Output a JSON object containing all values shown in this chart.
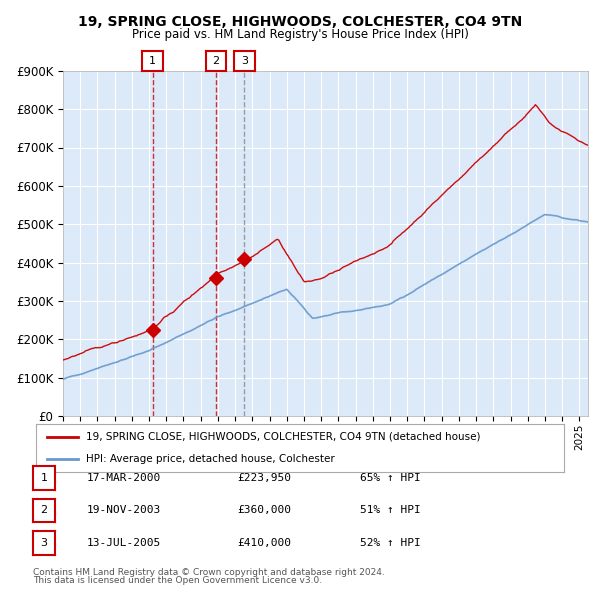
{
  "title": "19, SPRING CLOSE, HIGHWOODS, COLCHESTER, CO4 9TN",
  "subtitle": "Price paid vs. HM Land Registry's House Price Index (HPI)",
  "legend_line1": "19, SPRING CLOSE, HIGHWOODS, COLCHESTER, CO4 9TN (detached house)",
  "legend_line2": "HPI: Average price, detached house, Colchester",
  "transactions": [
    {
      "num": 1,
      "date": "17-MAR-2000",
      "price": 223950,
      "hpi_pct": "65%",
      "x_year": 2000.21
    },
    {
      "num": 2,
      "date": "19-NOV-2003",
      "price": 360000,
      "hpi_pct": "51%",
      "x_year": 2003.89
    },
    {
      "num": 3,
      "date": "13-JUL-2005",
      "price": 410000,
      "hpi_pct": "52%",
      "x_year": 2005.54
    }
  ],
  "footer1": "Contains HM Land Registry data © Crown copyright and database right 2024.",
  "footer2": "This data is licensed under the Open Government Licence v3.0.",
  "bg_color": "#dce9f8",
  "grid_color": "#ffffff",
  "red_line_color": "#cc0000",
  "blue_line_color": "#6699cc",
  "marker_color": "#cc0000",
  "vline_red_color": "#cc0000",
  "vline_gray_color": "#888888",
  "ylim": [
    0,
    900000
  ],
  "yticks": [
    0,
    100000,
    200000,
    300000,
    400000,
    500000,
    600000,
    700000,
    800000,
    900000
  ],
  "xlim_start": 1995.0,
  "xlim_end": 2025.5
}
